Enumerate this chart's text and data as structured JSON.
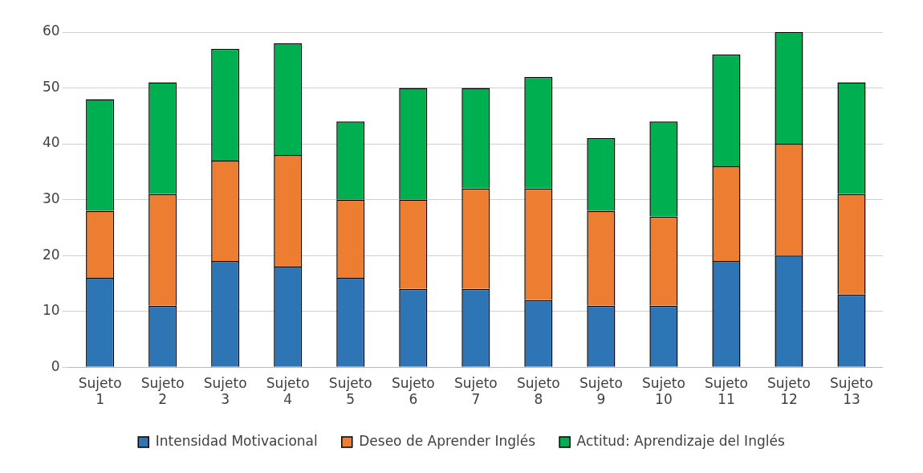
{
  "chart_data": {
    "type": "bar",
    "stacked": true,
    "categories": [
      "Sujeto 1",
      "Sujeto 2",
      "Sujeto 3",
      "Sujeto 4",
      "Sujeto 5",
      "Sujeto 6",
      "Sujeto 7",
      "Sujeto 8",
      "Sujeto 9",
      "Sujeto 10",
      "Sujeto 11",
      "Sujeto 12",
      "Sujeto 13"
    ],
    "series": [
      {
        "name": "Intensidad Motivacional",
        "color": "#2e75b6",
        "values": [
          16,
          11,
          19,
          18,
          16,
          14,
          14,
          12,
          11,
          11,
          19,
          20,
          13
        ]
      },
      {
        "name": "Deseo de Aprender Inglés",
        "color": "#ed7d31",
        "values": [
          12,
          20,
          18,
          20,
          14,
          16,
          18,
          20,
          17,
          16,
          17,
          20,
          18
        ]
      },
      {
        "name": "Actitud: Aprendizaje del Inglés",
        "color": "#00b050",
        "values": [
          20,
          20,
          20,
          20,
          14,
          20,
          18,
          20,
          13,
          17,
          20,
          20,
          20
        ]
      }
    ],
    "ylim": [
      0,
      60
    ],
    "yticks": [
      0,
      10,
      20,
      30,
      40,
      50,
      60
    ],
    "grid": "y",
    "legend": "bottom"
  }
}
